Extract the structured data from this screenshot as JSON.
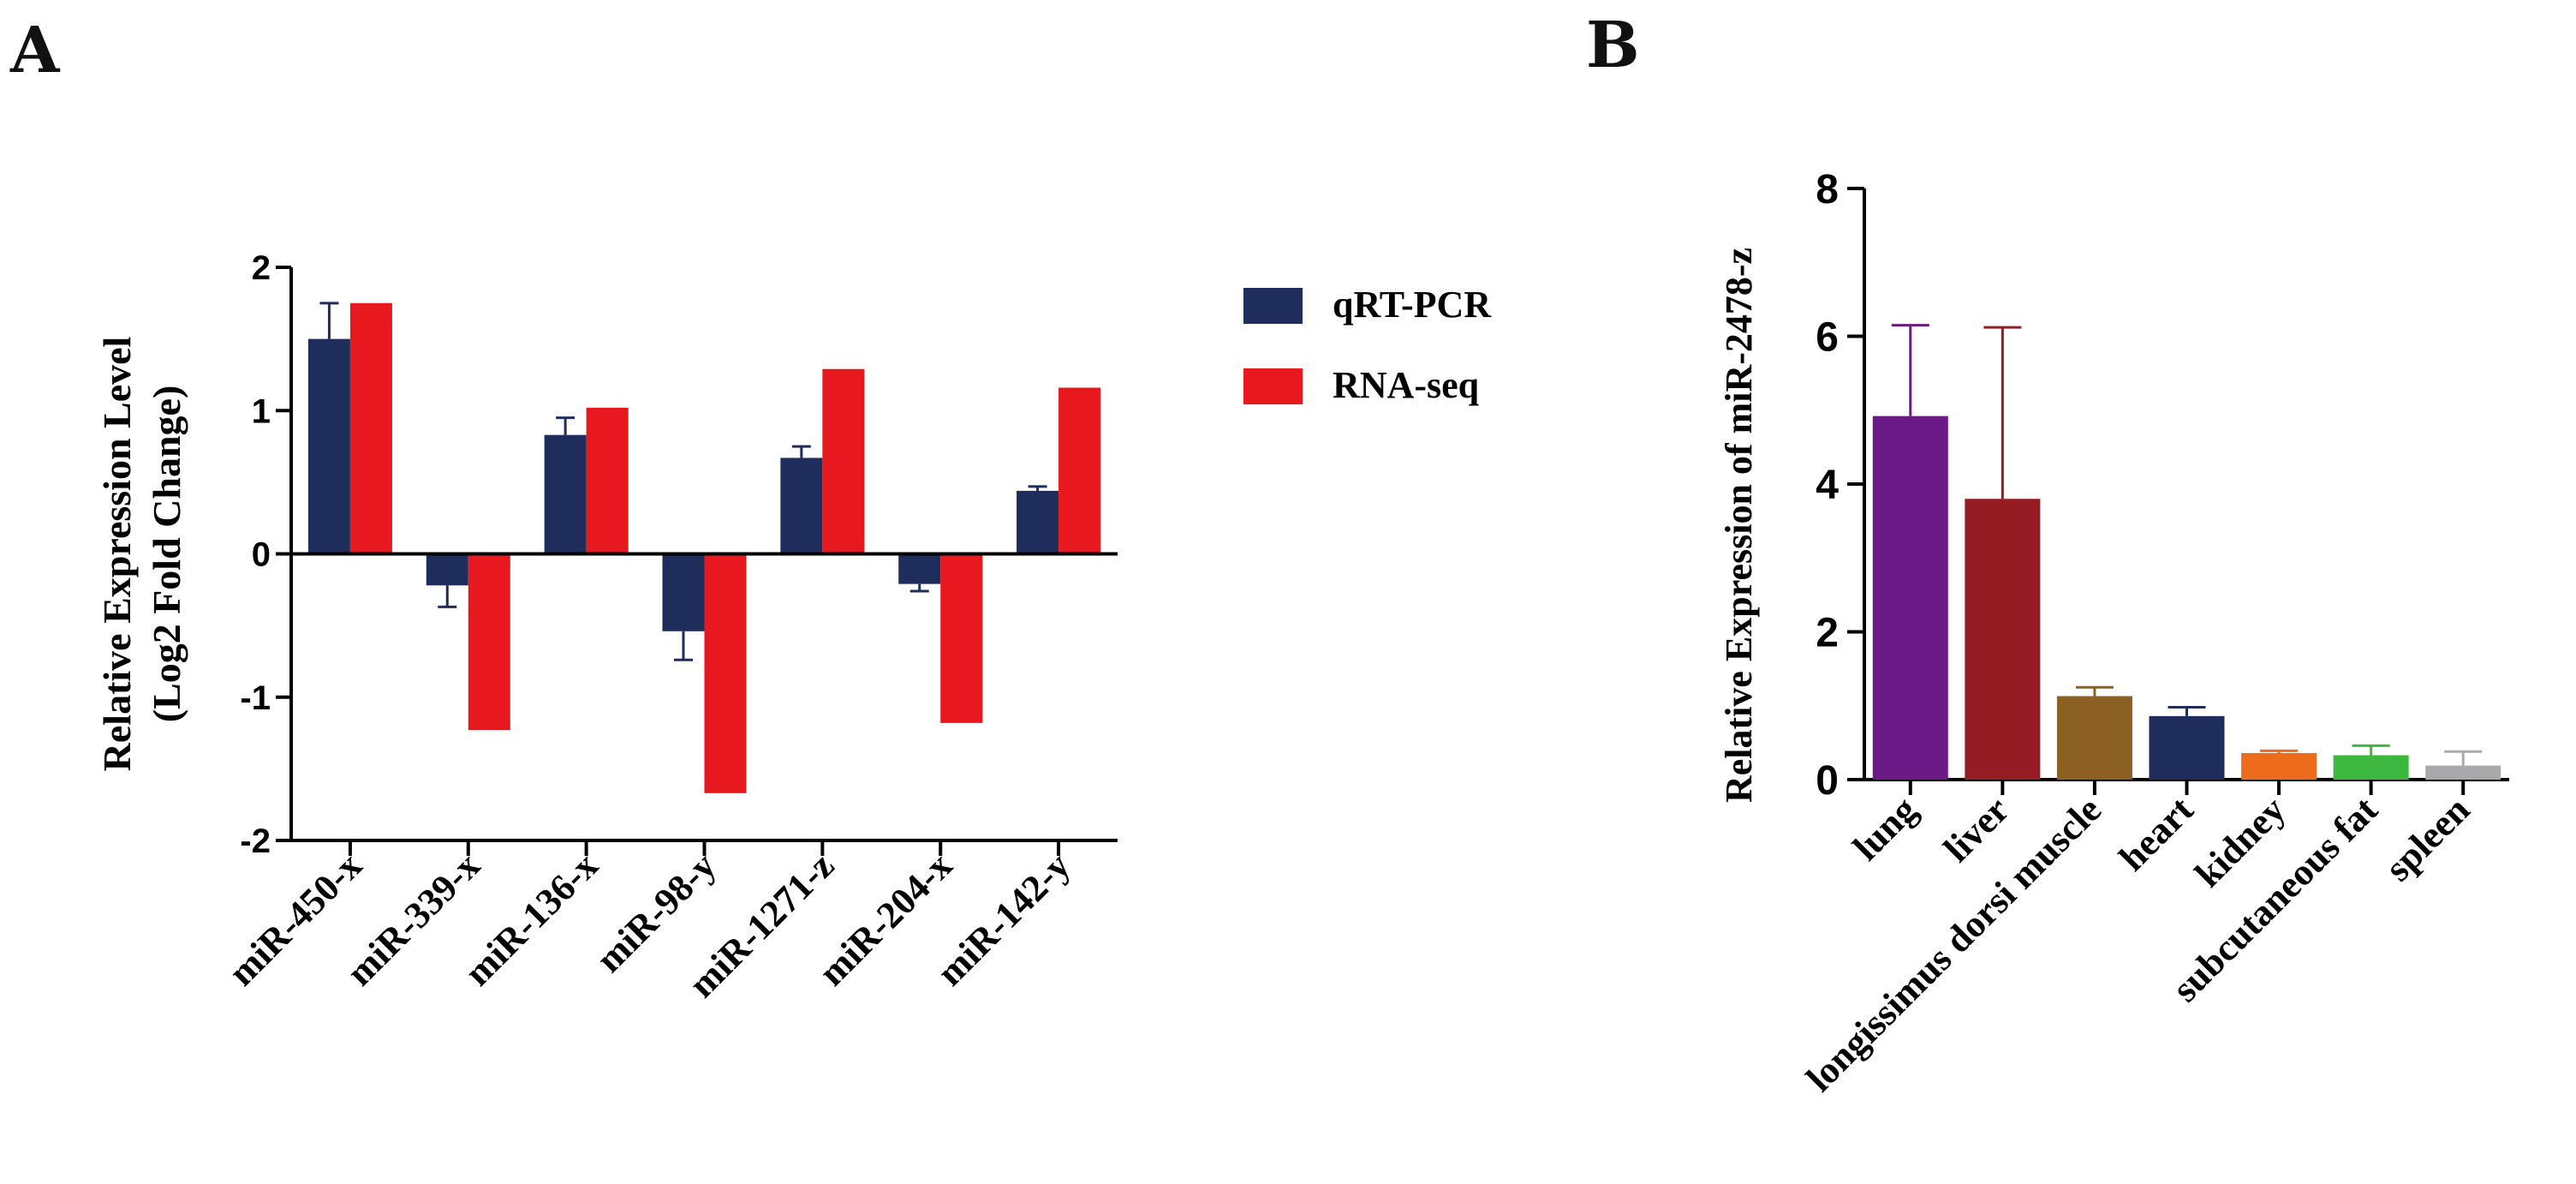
{
  "panels": {
    "a": {
      "letter": "A"
    },
    "b": {
      "letter": "B"
    }
  },
  "colors": {
    "qrt_pcr": "#1f2d5c",
    "rna_seq": "#e8191e",
    "axis": "#000000"
  },
  "chart_data": [
    {
      "id": "panel-a",
      "type": "bar",
      "title": "",
      "xlabel": "",
      "ylabel": "Relative Expression Level",
      "ylabel2": "(Log2 Fold Change)",
      "ylim": [
        -2,
        2
      ],
      "yticks": [
        2,
        1,
        0,
        -1,
        -2
      ],
      "ytick_labels": [
        "2",
        "1",
        "0",
        "-1",
        "-2"
      ],
      "categories": [
        "miR-450-x",
        "miR-339-x",
        "miR-136-x",
        "miR-98-y",
        "miR-1271-z",
        "miR-204-x",
        "miR-142-y"
      ],
      "legend_position": "right",
      "series": [
        {
          "name": "qRT-PCR",
          "color": "#1f2d5c",
          "values": [
            1.5,
            -0.22,
            0.83,
            -0.54,
            0.67,
            -0.21,
            0.44
          ],
          "errors": [
            0.25,
            0.15,
            0.12,
            0.2,
            0.08,
            0.05,
            0.03
          ]
        },
        {
          "name": "RNA-seq",
          "color": "#e8191e",
          "values": [
            1.75,
            -1.23,
            1.02,
            -1.67,
            1.29,
            -1.18,
            1.16
          ],
          "errors": [
            0,
            0,
            0,
            0,
            0,
            0,
            0
          ]
        }
      ]
    },
    {
      "id": "panel-b",
      "type": "bar",
      "title": "",
      "xlabel": "",
      "ylabel": "Relative Expression of miR-2478-z",
      "ylim": [
        0,
        8
      ],
      "yticks": [
        0,
        2,
        4,
        6,
        8
      ],
      "ytick_labels": [
        "0",
        "2",
        "4",
        "6",
        "8"
      ],
      "categories": [
        "lung",
        "liver",
        "longissimus dorsi muscle",
        "heart",
        "kidney",
        "subcutaneous fat",
        "spleen"
      ],
      "values": [
        4.92,
        3.8,
        1.13,
        0.86,
        0.36,
        0.33,
        0.19
      ],
      "errors": [
        1.23,
        2.32,
        0.12,
        0.12,
        0.03,
        0.13,
        0.19
      ],
      "colors": [
        "#6b1a85",
        "#951c22",
        "#8c5f22",
        "#1f2d5c",
        "#ee6b1b",
        "#3cb83f",
        "#a9a9ab"
      ]
    }
  ]
}
